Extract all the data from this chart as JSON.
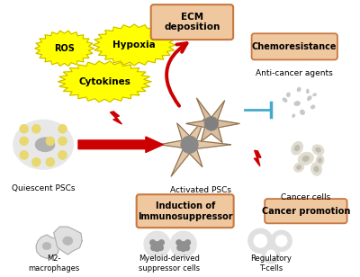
{
  "bg_color": "#ffffff",
  "figsize": [
    4.0,
    3.08
  ],
  "dpi": 100,
  "ros_label": "ROS",
  "hypoxia_label": "Hypoxia",
  "cytokines_label": "Cytokines",
  "quiescent_label": "Quiescent PSCs",
  "activated_label": "Activated PSCs",
  "ecm_label": "ECM\ndeposition",
  "chemo_label": "Chemoresistance",
  "anti_cancer_label": "Anti-cancer agents",
  "cancer_cells_label": "Cancer cells",
  "cancer_promotion_label": "Cancer promotion",
  "immunosuppressor_label": "Induction of\nImmunosuppressor",
  "m2_label": "M2-\nmacrophages",
  "myeloid_label": "Myeloid-derived\nsuppressor cells",
  "regulatory_label": "Regulatory\nT-cells",
  "yellow_fill": "#ffff00",
  "yellow_edge": "#c8b400",
  "box_fill": "#f0c8a0",
  "box_edge": "#c87840",
  "red_arrow": "#cc0000",
  "blue_inhibit": "#44aacc",
  "lipid_fill": "#e8d870",
  "lipid_edge": "#c8b030"
}
